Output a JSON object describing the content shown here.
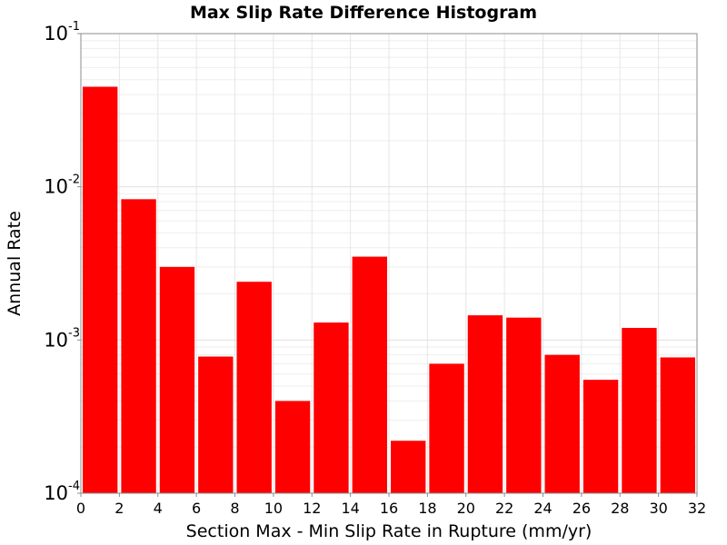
{
  "chart_data": {
    "type": "bar",
    "title": "Max Slip Rate Difference Histogram",
    "xlabel": "Section Max - Min Slip Rate in Rupture (mm/yr)",
    "ylabel": "Annual Rate",
    "bin_width": 2,
    "x": [
      1,
      3,
      5,
      7,
      9,
      11,
      13,
      15,
      17,
      19,
      21,
      23,
      25,
      27,
      29,
      31
    ],
    "values": [
      0.045,
      0.0083,
      0.003,
      0.00078,
      0.0024,
      0.0004,
      0.0013,
      0.0035,
      0.00022,
      0.0007,
      0.00145,
      0.0014,
      0.0008,
      0.00055,
      0.0012,
      0.00077
    ],
    "xlim": [
      0,
      32
    ],
    "ylim": [
      0.0001,
      0.1
    ],
    "y_scale": "log",
    "xticks": [
      "0",
      "2",
      "4",
      "6",
      "8",
      "10",
      "12",
      "14",
      "16",
      "18",
      "20",
      "22",
      "24",
      "26",
      "28",
      "30",
      "32"
    ],
    "yticks": [
      {
        "value": 0.1,
        "base": "10",
        "exp": "-1"
      },
      {
        "value": 0.01,
        "base": "10",
        "exp": "-2"
      },
      {
        "value": 0.001,
        "base": "10",
        "exp": "-3"
      },
      {
        "value": 0.0001,
        "base": "10",
        "exp": "-4"
      }
    ],
    "bar_color": "#ff0000",
    "grid": true
  }
}
